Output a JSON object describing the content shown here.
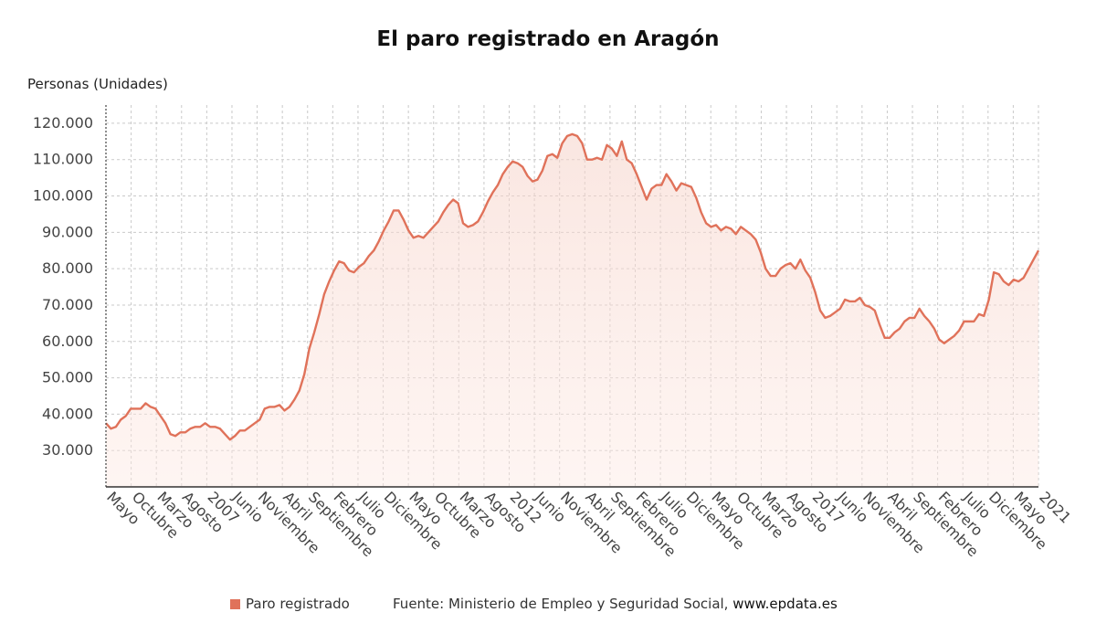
{
  "chart_data": {
    "type": "area",
    "title": "El paro registrado en Aragón",
    "ylabel": "Personas (Unidades)",
    "xlabel": "",
    "ylim": [
      20000,
      125000
    ],
    "y_ticks": [
      "30.000",
      "40.000",
      "50.000",
      "60.000",
      "70.000",
      "80.000",
      "90.000",
      "100.000",
      "110.000",
      "120.000"
    ],
    "y_tick_values": [
      30000,
      40000,
      50000,
      60000,
      70000,
      80000,
      90000,
      100000,
      110000,
      120000
    ],
    "grid": true,
    "legend_position": "bottom",
    "line_color": "#e0725a",
    "x_tick_labels": [
      "Mayo",
      "Octubre",
      "Marzo",
      "Agosto",
      "2007",
      "Junio",
      "Noviembre",
      "Abril",
      "Septiembre",
      "Febrero",
      "Julio",
      "Diciembre",
      "Mayo",
      "Octubre",
      "Marzo",
      "Agosto",
      "2012",
      "Junio",
      "Noviembre",
      "Abril",
      "Septiembre",
      "Febrero",
      "Julio",
      "Diciembre",
      "Mayo",
      "Octubre",
      "Marzo",
      "Agosto",
      "2017",
      "Junio",
      "Noviembre",
      "Abril",
      "Septiembre",
      "Febrero",
      "Julio",
      "Diciembre",
      "Mayo",
      "2021"
    ],
    "series": [
      {
        "name": "Paro registrado",
        "values": [
          37500,
          36000,
          36500,
          38500,
          39500,
          41500,
          41500,
          41500,
          43000,
          42000,
          41500,
          39500,
          37500,
          34500,
          34000,
          35000,
          35000,
          36000,
          36500,
          36500,
          37500,
          36500,
          36500,
          36000,
          34500,
          33000,
          34000,
          35500,
          35500,
          36500,
          37500,
          38500,
          41500,
          42000,
          42000,
          42500,
          41000,
          42000,
          44000,
          46500,
          51000,
          58000,
          62500,
          67500,
          73000,
          76500,
          79500,
          82000,
          81500,
          79500,
          79000,
          80500,
          81500,
          83500,
          85000,
          87500,
          90500,
          93000,
          96000,
          96000,
          93500,
          90500,
          88500,
          89000,
          88500,
          90000,
          91500,
          93000,
          95500,
          97500,
          99000,
          98000,
          92500,
          91500,
          92000,
          93000,
          95500,
          98500,
          101000,
          103000,
          106000,
          108000,
          109500,
          109000,
          108000,
          105500,
          104000,
          104500,
          107000,
          111000,
          111500,
          110500,
          114500,
          116500,
          117000,
          116500,
          114500,
          110000,
          110000,
          110500,
          110000,
          114000,
          113000,
          111000,
          115000,
          110000,
          109000,
          106000,
          102500,
          99000,
          102000,
          103000,
          103000,
          106000,
          104000,
          101500,
          103500,
          103000,
          102500,
          99500,
          95500,
          92500,
          91500,
          92000,
          90500,
          91500,
          91000,
          89500,
          91500,
          90500,
          89500,
          88000,
          84500,
          80000,
          78000,
          78000,
          80000,
          81000,
          81500,
          80000,
          82500,
          79500,
          77500,
          73500,
          68500,
          66500,
          67000,
          68000,
          69000,
          71500,
          71000,
          71000,
          72000,
          70000,
          69500,
          68500,
          64500,
          61000,
          61000,
          62500,
          63500,
          65500,
          66500,
          66500,
          69000,
          67000,
          65500,
          63500,
          60500,
          59500,
          60500,
          61500,
          63000,
          65500,
          65500,
          65500,
          67500,
          67000,
          71500,
          79000,
          78500,
          76500,
          75500,
          77000,
          76500,
          77500,
          80000,
          82500,
          85000
        ]
      }
    ]
  },
  "legend": {
    "label": "Paro registrado",
    "color": "#e0725a"
  },
  "source_text": "Fuente: Ministerio de Empleo y Seguridad Social,",
  "source_site": "www.epdata.es"
}
